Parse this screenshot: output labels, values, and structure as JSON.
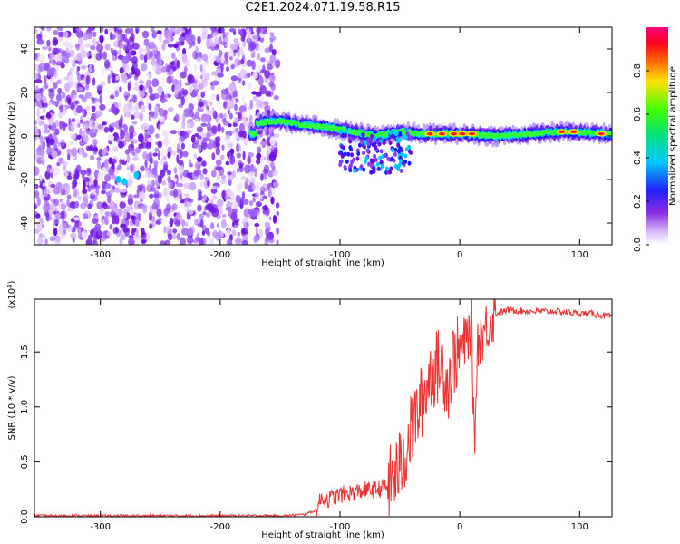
{
  "title": "C2E1.2024.071.19.58.R15",
  "colors": {
    "snr_line": "#ee3333",
    "axis": "#000000"
  },
  "chart_data": [
    {
      "type": "heatmap",
      "xlabel": "Height of straight line (km)",
      "ylabel": "Frequency (Hz)",
      "xlim": [
        -355,
        127
      ],
      "ylim": [
        -50,
        50
      ],
      "x_ticks": [
        -300,
        -200,
        -100,
        0,
        100
      ],
      "x_tick_labels": [
        "-300",
        "-200",
        "-100",
        "0",
        "100"
      ],
      "y_ticks": [
        -40,
        -20,
        0,
        20,
        40
      ],
      "y_tick_labels": [
        "-40",
        "-20",
        "0",
        "20",
        "40"
      ],
      "grid": false,
      "colorbar": {
        "label": "Normalized spectral amplitude",
        "range": [
          0,
          1
        ],
        "ticks": [
          0.0,
          0.2,
          0.4,
          0.6,
          0.8
        ],
        "tick_labels": [
          "0.0",
          "0.2",
          "0.4",
          "0.6",
          "0.8"
        ],
        "colormap": "rainbow (white–purple–blue–cyan–green–yellow–red–magenta)"
      },
      "description_points": {
        "noise_region_x": [
          -355,
          -152
        ],
        "signal_band_center_hz": [
          {
            "x": -170,
            "y": 6
          },
          {
            "x": -150,
            "y": 7
          },
          {
            "x": -130,
            "y": 5
          },
          {
            "x": -110,
            "y": 4
          },
          {
            "x": -90,
            "y": 2
          },
          {
            "x": -70,
            "y": 0
          },
          {
            "x": -50,
            "y": 2
          },
          {
            "x": -30,
            "y": 1
          },
          {
            "x": -10,
            "y": 1
          },
          {
            "x": 0,
            "y": 1
          },
          {
            "x": 30,
            "y": 0
          },
          {
            "x": 60,
            "y": 1
          },
          {
            "x": 90,
            "y": 2
          },
          {
            "x": 127,
            "y": 1
          }
        ]
      }
    },
    {
      "type": "line",
      "xlabel": "Height of straight line (km)",
      "ylabel": "SNR (10 * v/v)",
      "multiplier_label": "(x10",
      "multiplier_exponent": "4",
      "multiplier_close": ")",
      "xlim": [
        -355,
        127
      ],
      "ylim": [
        0,
        1.98
      ],
      "x_ticks": [
        -300,
        -200,
        -100,
        0,
        100
      ],
      "x_tick_labels": [
        "-300",
        "-200",
        "-100",
        "0",
        "100"
      ],
      "y_ticks": [
        0,
        0.5,
        1.0,
        1.5
      ],
      "y_tick_labels": [
        "0.0",
        "0.5",
        "1.0",
        "1.5"
      ],
      "grid": false,
      "series": [
        {
          "color": "#ee3333",
          "x": [
            -355,
            -300,
            -250,
            -200,
            -150,
            -130,
            -120,
            -115,
            -110,
            -100,
            -90,
            -80,
            -70,
            -60,
            -50,
            -45,
            -40,
            -35,
            -30,
            -25,
            -20,
            -15,
            -10,
            -5,
            0,
            5,
            10,
            12,
            15,
            20,
            25,
            30,
            40,
            60,
            80,
            90,
            100,
            110,
            120,
            127
          ],
          "y": [
            0.01,
            0.01,
            0.01,
            0.01,
            0.01,
            0.02,
            0.06,
            0.18,
            0.16,
            0.2,
            0.22,
            0.24,
            0.25,
            0.28,
            0.45,
            0.6,
            0.8,
            0.95,
            1.1,
            1.3,
            1.35,
            1.4,
            1.2,
            1.45,
            1.5,
            1.6,
            1.75,
            0.6,
            1.6,
            1.68,
            1.78,
            1.85,
            1.88,
            1.87,
            1.87,
            1.86,
            1.85,
            1.85,
            1.83,
            1.82
          ]
        }
      ]
    }
  ]
}
